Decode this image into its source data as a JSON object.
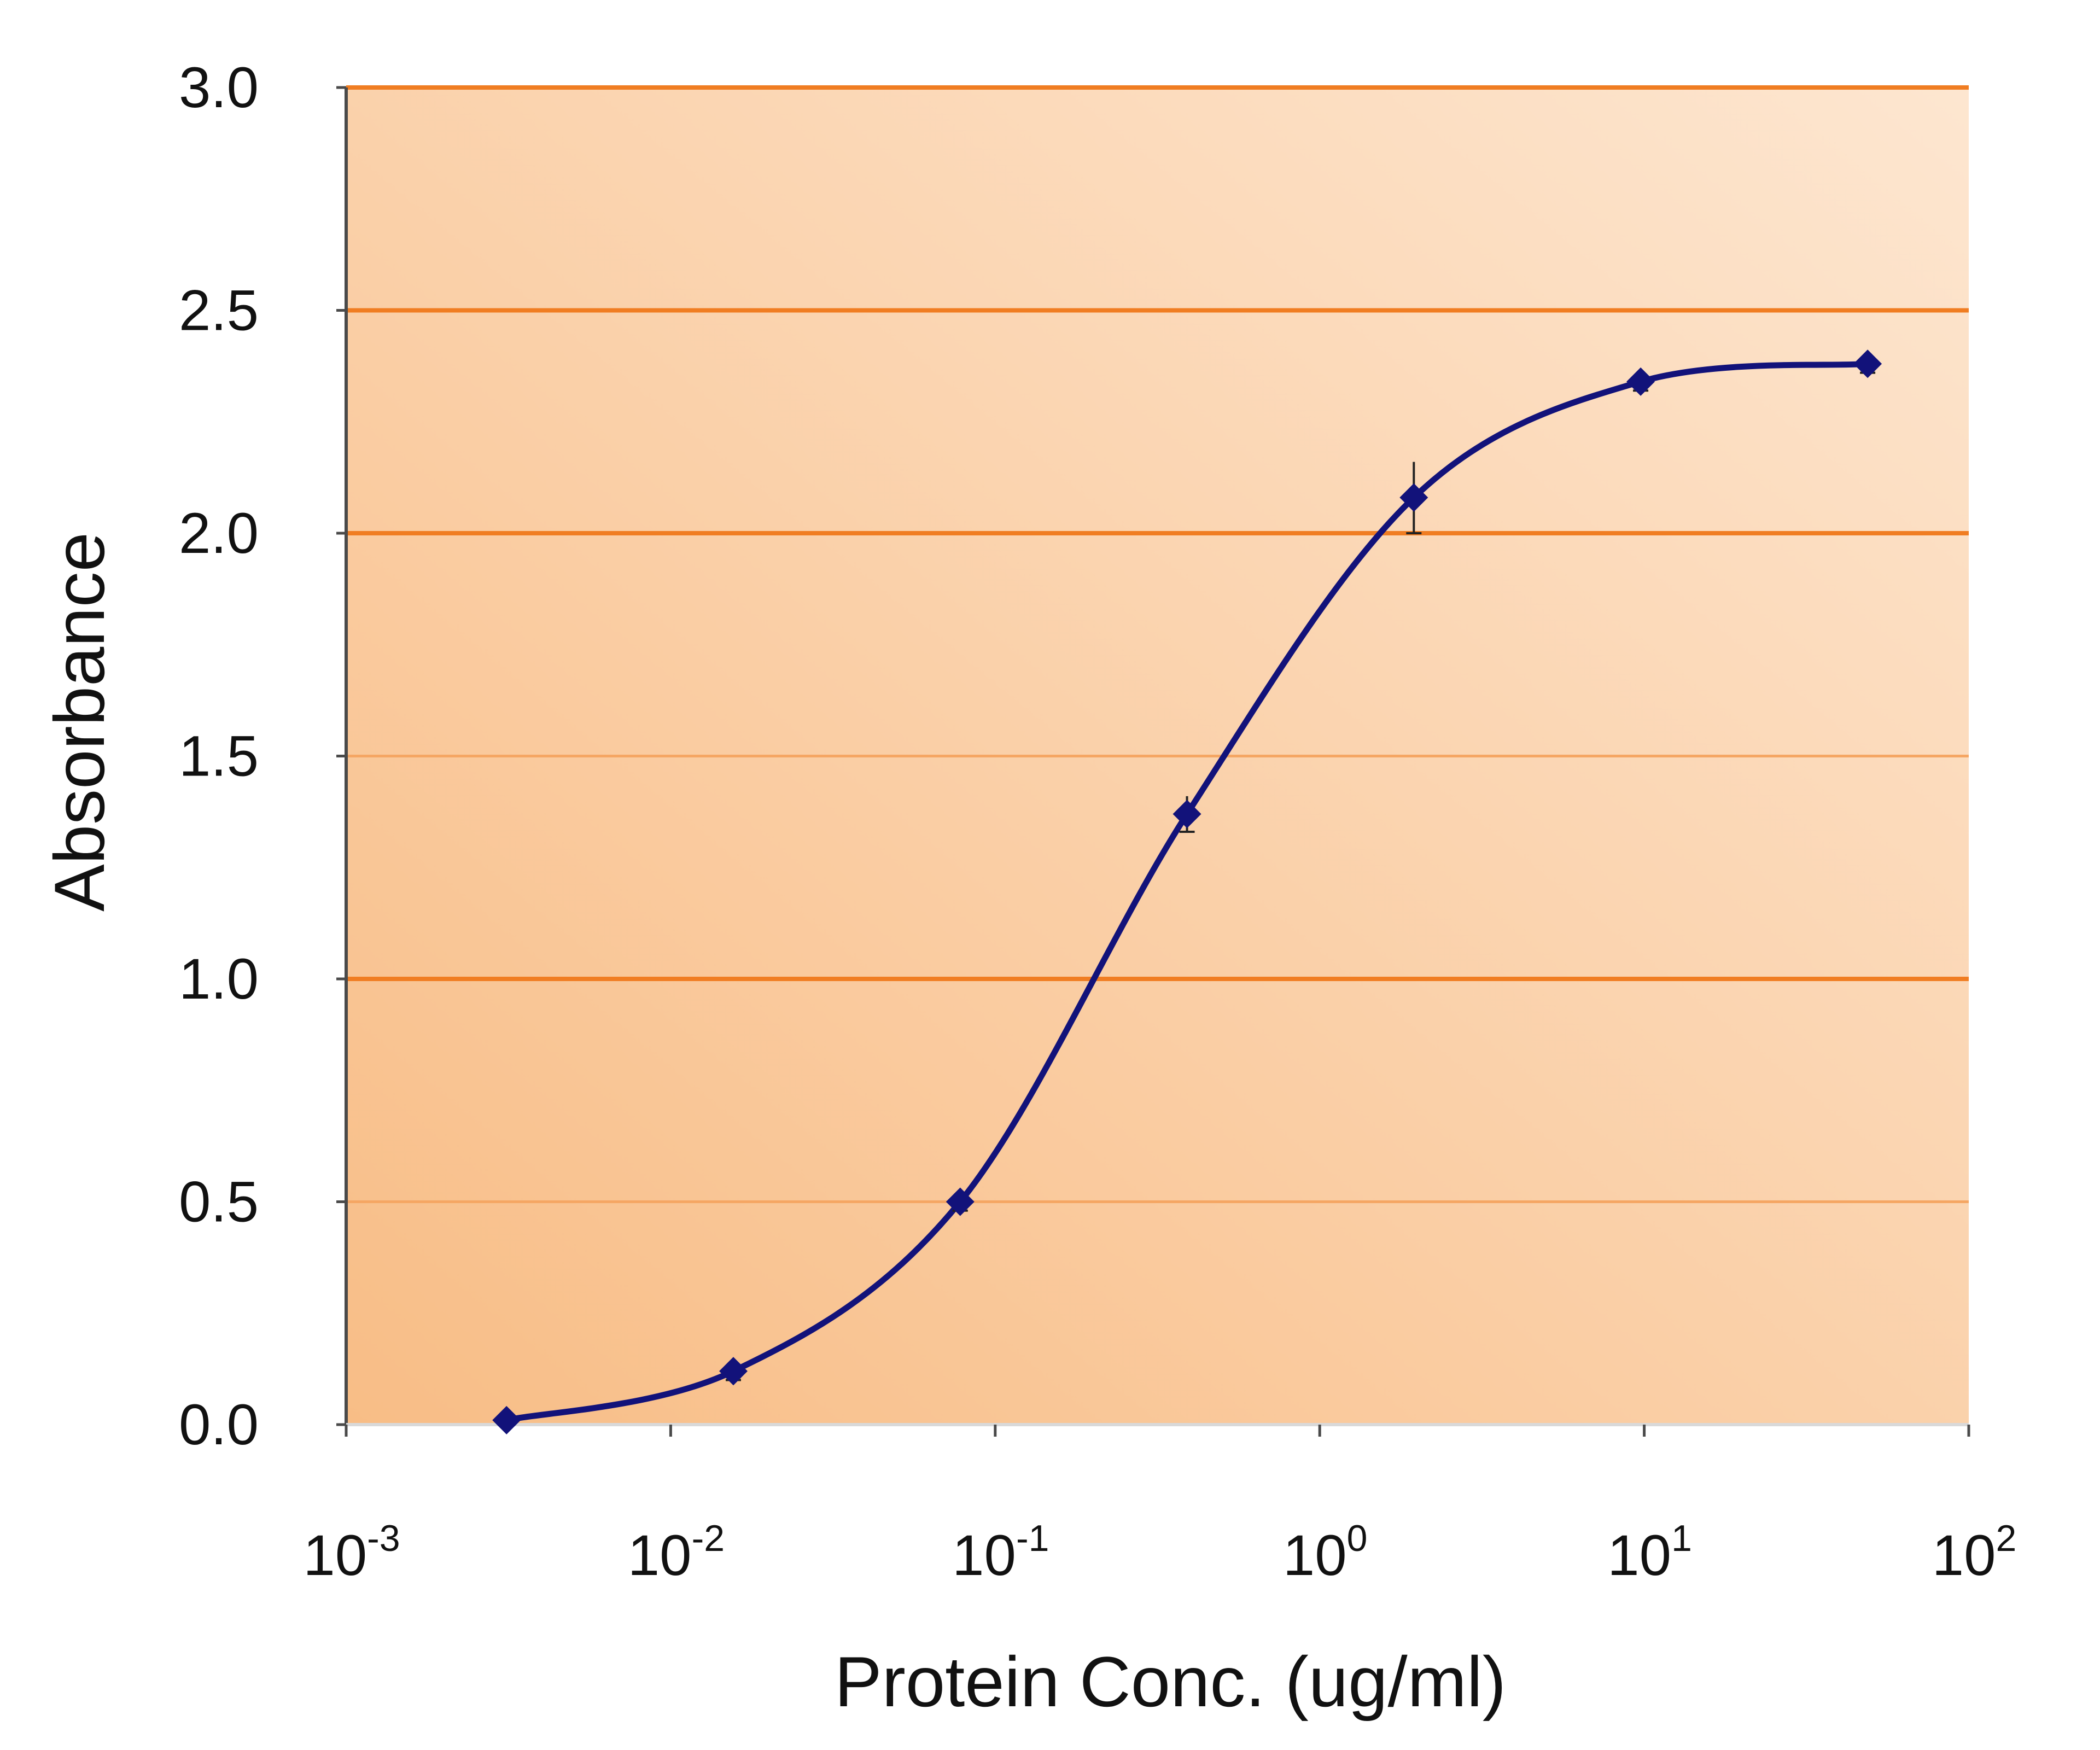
{
  "chart_data": {
    "type": "line",
    "title": "",
    "xlabel": "Protein Conc. (ug/ml)",
    "ylabel": "Absorbance",
    "xscale": "log",
    "xlim": [
      0.001,
      100
    ],
    "ylim": [
      0,
      3.0
    ],
    "grid": "horizontal",
    "legend": "none",
    "y_ticks": [
      "0.0",
      "0.5",
      "1.0",
      "1.5",
      "2.0",
      "2.5",
      "3.0"
    ],
    "y_tick_values": [
      0,
      0.5,
      1.0,
      1.5,
      2.0,
      2.5,
      3.0
    ],
    "x_ticks": [
      {
        "value": 0.001,
        "base": "10",
        "exp": "-3"
      },
      {
        "value": 0.01,
        "base": "10",
        "exp": "-2"
      },
      {
        "value": 0.1,
        "base": "10",
        "exp": "-1"
      },
      {
        "value": 1,
        "base": "10",
        "exp": "0"
      },
      {
        "value": 10,
        "base": "10",
        "exp": "1"
      },
      {
        "value": 100,
        "base": "10",
        "exp": "2"
      }
    ],
    "series": [
      {
        "name": "Absorbance",
        "color": "#12127a",
        "x": [
          0.00312,
          0.0156,
          0.078,
          0.39,
          1.95,
          9.75,
          48.8
        ],
        "y": [
          0.01,
          0.12,
          0.5,
          1.37,
          2.08,
          2.34,
          2.38
        ],
        "error": [
          0.01,
          0.02,
          0.02,
          0.04,
          0.08,
          0.02,
          0.02
        ]
      }
    ],
    "colors": {
      "plot_bg_dark": "#f9c08a",
      "plot_bg_light": "#fde4cc",
      "grid_major": "#f07d22",
      "grid_minor": "#f5a663",
      "axis": "#4a4a4a"
    }
  }
}
